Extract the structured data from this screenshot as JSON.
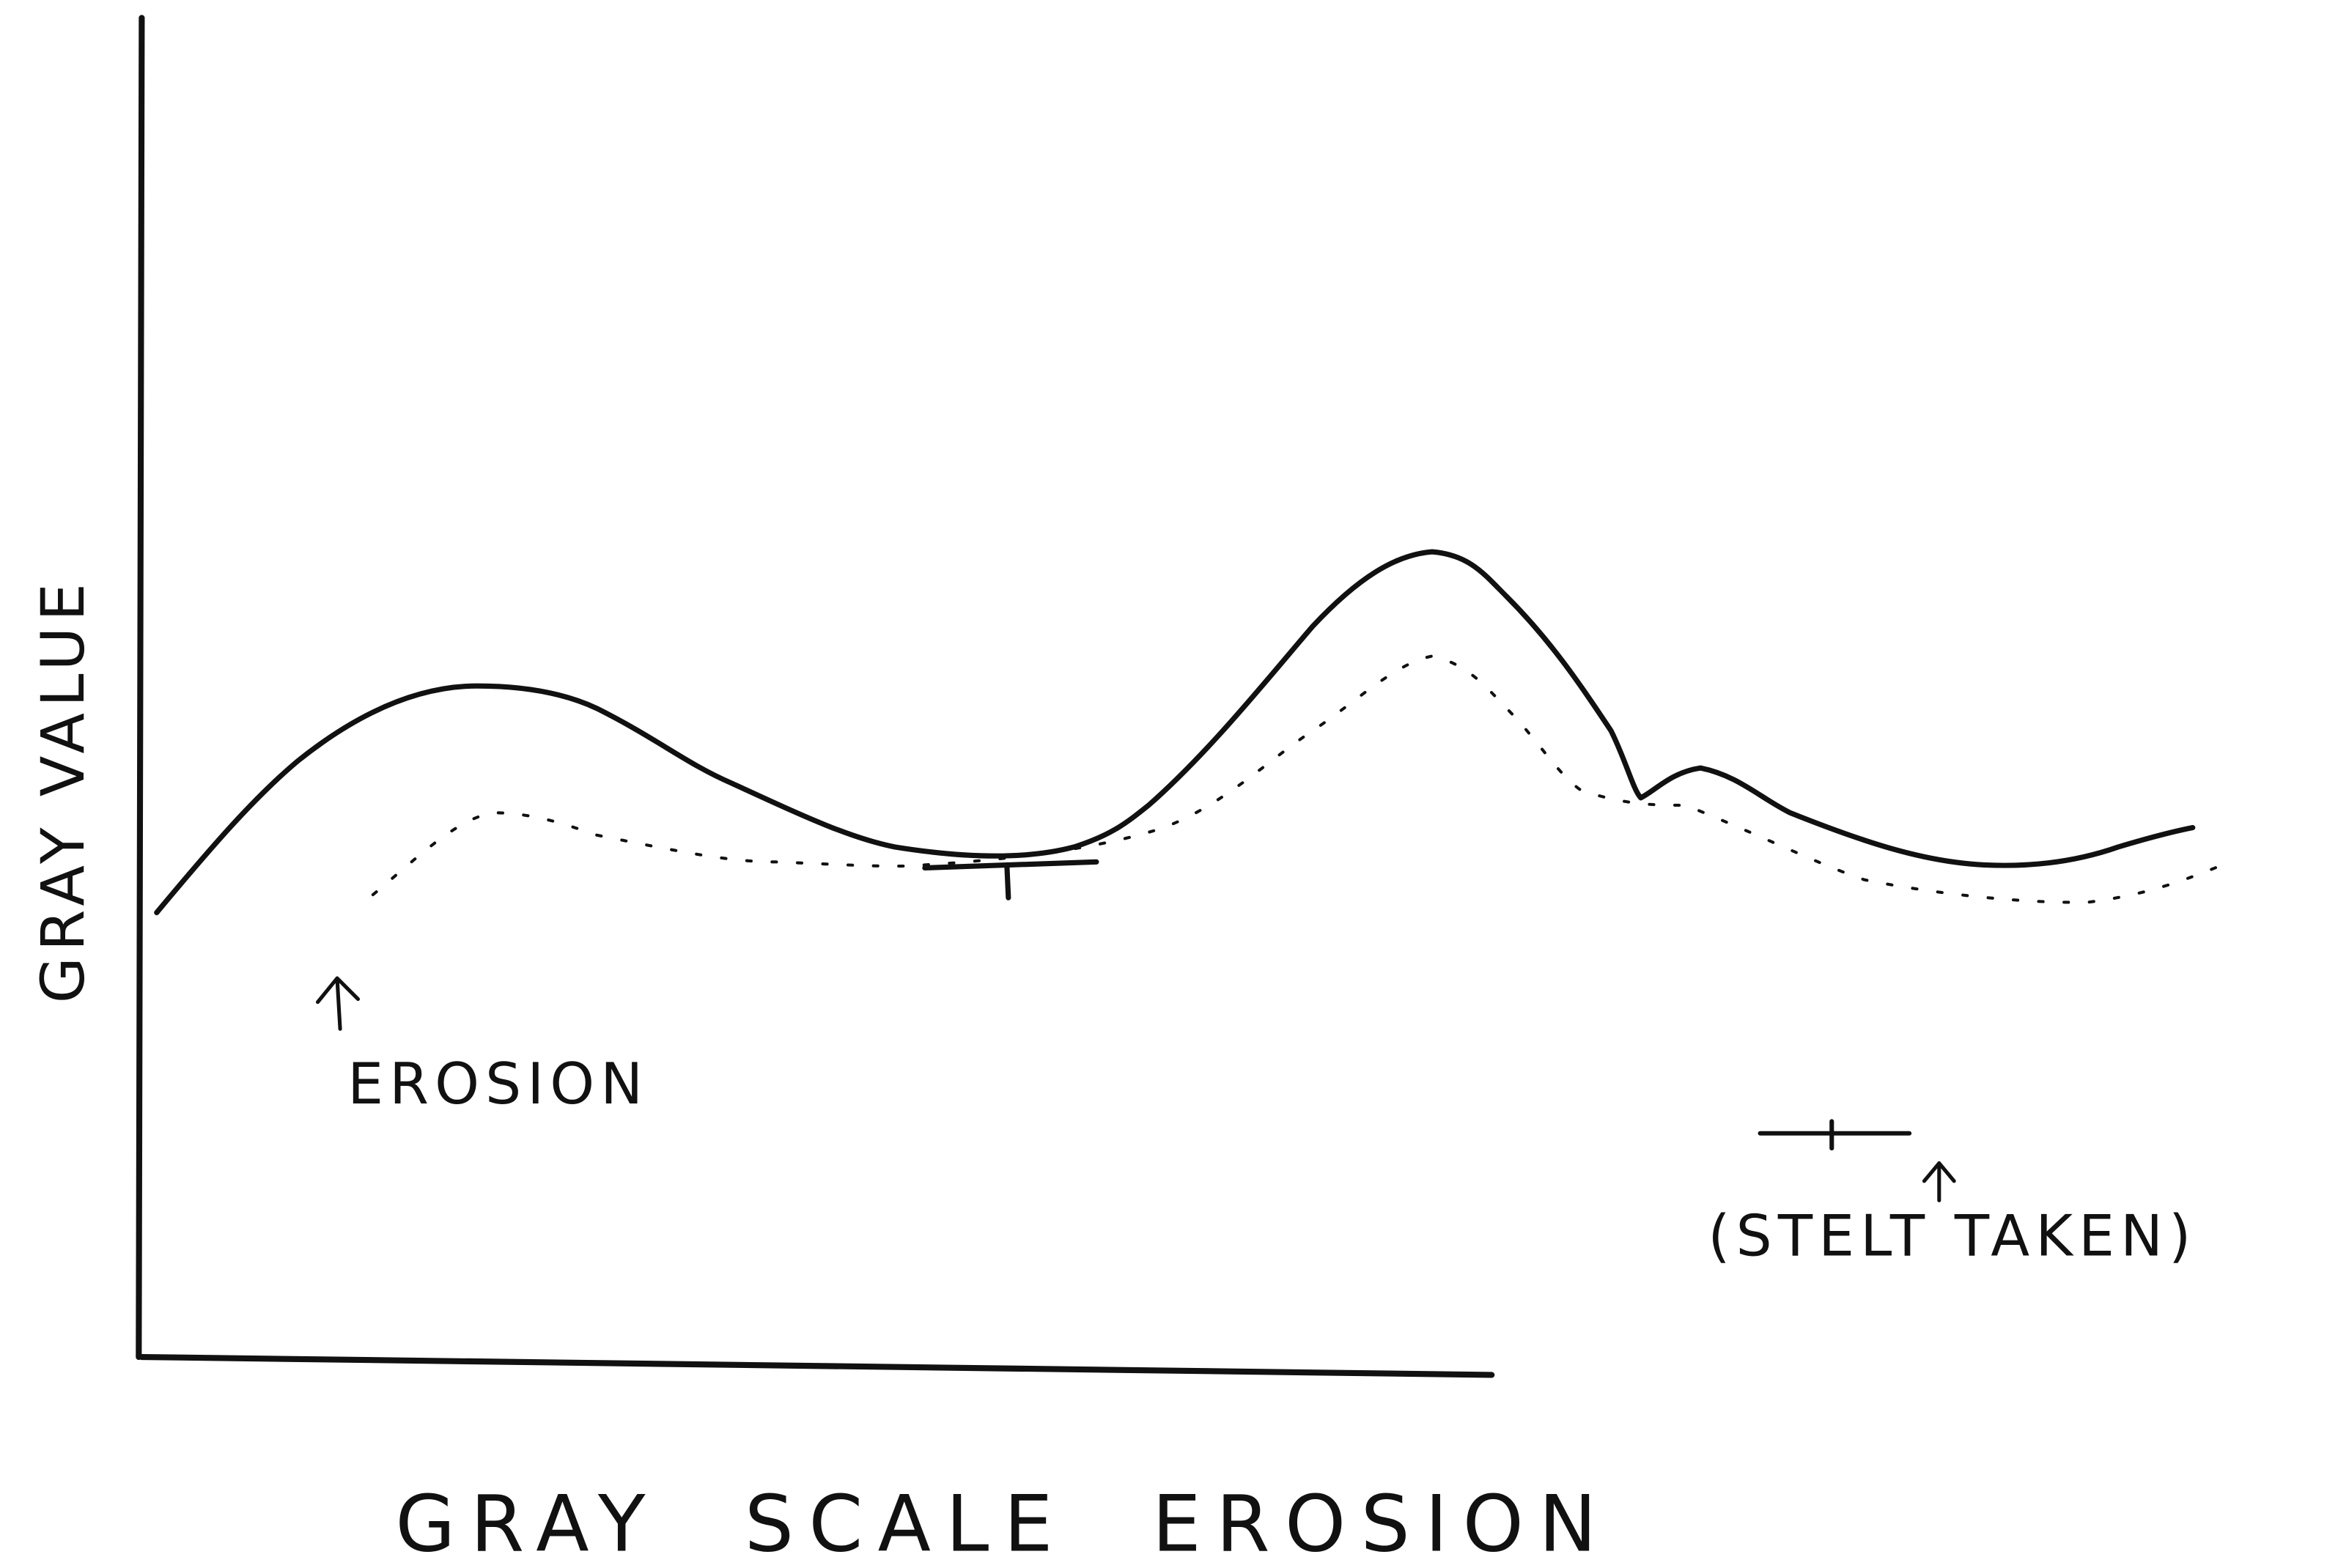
{
  "axis_label": "GRAY VALUE",
  "annotations": {
    "erosion": "EROSION",
    "step": "(STELT TAKEN)"
  },
  "title": "GRAY SCALE EROSION"
}
